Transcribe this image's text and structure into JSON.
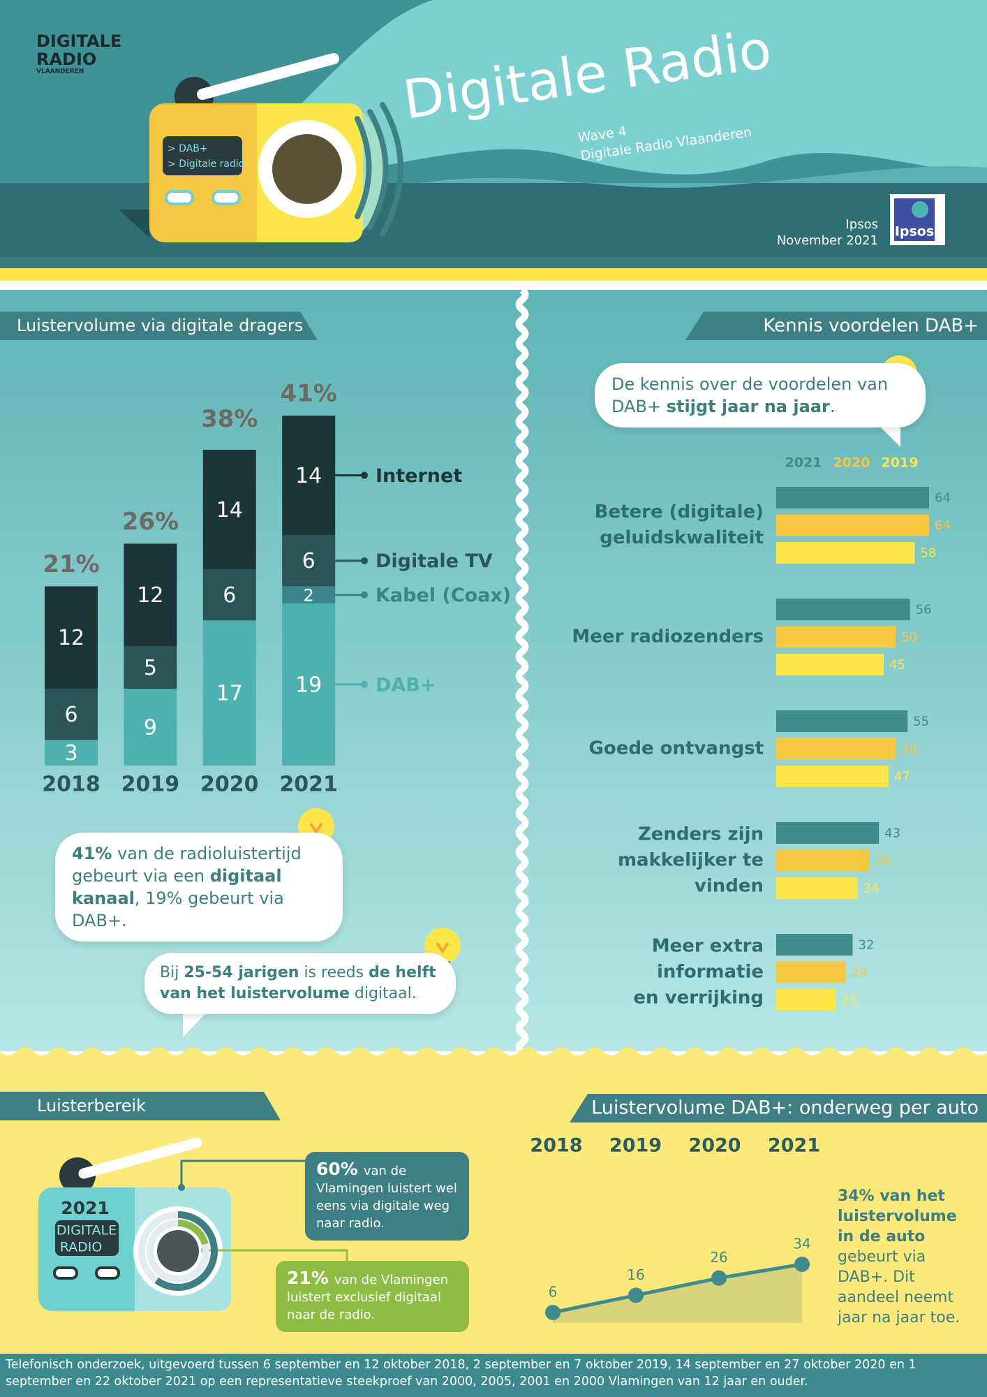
{
  "header": {
    "logo": [
      "DIGITALE",
      "RADIO",
      "VLAANDEREN"
    ],
    "screen": [
      "> DAB+",
      "> Digitale radio"
    ],
    "title": "Digitale Radio",
    "subtitle": [
      "Wave 4",
      "Digitale Radio Vlaanderen"
    ],
    "source": [
      "Ipsos",
      "November 2021"
    ],
    "brand": "Ipsos"
  },
  "chart_data": [
    {
      "type": "stacked-bar",
      "title": "Luistervolume via digitale dragers",
      "categories": [
        "2018",
        "2019",
        "2020",
        "2021"
      ],
      "series": [
        {
          "name": "DAB+",
          "color": "#4fb0b0",
          "values": [
            3,
            9,
            17,
            19
          ]
        },
        {
          "name": "Kabel (Coax)",
          "color": "#3a8589",
          "values": [
            null,
            null,
            null,
            2
          ]
        },
        {
          "name": "Digitale TV",
          "color": "#2a5558",
          "values": [
            6,
            5,
            6,
            6
          ]
        },
        {
          "name": "Internet",
          "color": "#1c3537",
          "values": [
            12,
            12,
            14,
            14
          ]
        }
      ],
      "totals": {
        "values": [
          21,
          26,
          38,
          41
        ],
        "value_labels": [
          "21%",
          "26%",
          "38%",
          "41%"
        ]
      },
      "notes": [
        [
          {
            "text": "41%",
            "bold": true
          },
          {
            "text": " van de radioluistertijd gebeurt via een "
          },
          {
            "text": "digitaal kanaal",
            "bold": true
          },
          {
            "text": ", 19% gebeurt via DAB+."
          }
        ],
        [
          {
            "text": "Bij "
          },
          {
            "text": "25-54 jarigen",
            "bold": true
          },
          {
            "text": " is reeds "
          },
          {
            "text": "de helft van het luistervolume",
            "bold": true
          },
          {
            "text": " digitaal."
          }
        ]
      ]
    },
    {
      "type": "grouped-hbar",
      "title": "Kennis voordelen DAB+",
      "categories": [
        "Betere (digitale)\ngeluidskwaliteit",
        "Meer radiozenders",
        "Goede ontvangst",
        "Zenders zijn\nmakkelijker te\nvinden",
        "Meer extra\ninformatie\nen verrijking"
      ],
      "series": [
        {
          "name": "2021",
          "color": "#3f8a8c",
          "values": [
            64,
            56,
            55,
            43,
            32
          ]
        },
        {
          "name": "2020",
          "color": "#f5c842",
          "values": [
            64,
            50,
            50,
            39,
            29
          ]
        },
        {
          "name": "2019",
          "color": "#fde64b",
          "values": [
            58,
            45,
            47,
            34,
            25
          ]
        }
      ],
      "note": [
        {
          "text": "De kennis over de voordelen van DAB+ "
        },
        {
          "text": "stijgt jaar na jaar",
          "bold": true
        },
        {
          "text": "."
        }
      ]
    },
    {
      "type": "ring",
      "title": "Luisterbereik",
      "icon": [
        "2021",
        "DIGITALE",
        "RADIO"
      ],
      "values": [
        60,
        21
      ],
      "value_labels": [
        "60%",
        "21%"
      ],
      "colors": [
        "#3d7f82",
        "#8fbc45"
      ],
      "descriptions": [
        "van de Vlamingen luistert wel eens via digitale weg naar radio.",
        "van de Vlamingen luistert exclusief digitaal naar de radio."
      ]
    },
    {
      "type": "line",
      "title": "Luistervolume DAB+: onderweg per auto",
      "categories": [
        "2018",
        "2019",
        "2020",
        "2021"
      ],
      "values": [
        6,
        16,
        26,
        34
      ],
      "color": "#3f8a8c",
      "note": [
        {
          "text": "34% van het luistervolume in de auto",
          "bold": true
        },
        {
          "text": " gebeurt via DAB+. Dit aandeel neemt jaar na jaar toe."
        }
      ]
    }
  ],
  "footer": "Telefonisch onderzoek, uitgevoerd tussen 6 september en 12 oktober 2018, 2 september en 7 oktober 2019, 14 september en 27 oktober 2020 en 1 september en 22 oktober 2021 op een representatieve steekproef van 2000, 2005, 2001 en 2000 Vlamingen van 12 jaar en ouder."
}
